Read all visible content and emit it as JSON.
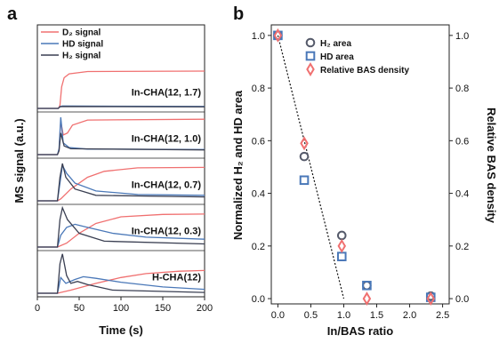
{
  "panels": {
    "a": "a",
    "b": "b"
  },
  "chart_data": [
    {
      "type": "line",
      "panel": "a",
      "xlabel": "Time (s)",
      "ylabel": "MS signal (a.u.)",
      "xlim": [
        0,
        200
      ],
      "x_ticks": [
        0,
        50,
        100,
        150,
        200
      ],
      "legend": [
        {
          "name": "D₂ signal",
          "color": "#f07070"
        },
        {
          "name": "HD signal",
          "color": "#4a78b8"
        },
        {
          "name": "H₂ signal",
          "color": "#3a3f52"
        }
      ],
      "colors": {
        "D2": "#f07070",
        "HD": "#4a78b8",
        "H2": "#3a3f52"
      },
      "traces": [
        {
          "label": "In-CHA(12, 1.7)",
          "D2": [
            [
              0,
              0
            ],
            [
              25,
              0
            ],
            [
              27,
              0.08
            ],
            [
              29,
              0.55
            ],
            [
              32,
              0.78
            ],
            [
              38,
              0.88
            ],
            [
              60,
              0.94
            ],
            [
              200,
              0.95
            ]
          ],
          "HD": [
            [
              0,
              0
            ],
            [
              25,
              0
            ],
            [
              27,
              0.05
            ],
            [
              30,
              0.06
            ],
            [
              200,
              0.05
            ]
          ],
          "H2": [
            [
              0,
              0
            ],
            [
              25,
              0
            ],
            [
              27,
              0.04
            ],
            [
              30,
              0.05
            ],
            [
              200,
              0.04
            ]
          ]
        },
        {
          "label": "In-CHA(12, 1.0)",
          "D2": [
            [
              0,
              0
            ],
            [
              24,
              0
            ],
            [
              26,
              0.1
            ],
            [
              28,
              0.85
            ],
            [
              31,
              0.5
            ],
            [
              36,
              0.55
            ],
            [
              42,
              0.75
            ],
            [
              60,
              0.88
            ],
            [
              200,
              0.9
            ]
          ],
          "HD": [
            [
              0,
              0
            ],
            [
              24,
              0
            ],
            [
              26,
              0.15
            ],
            [
              28,
              0.95
            ],
            [
              31,
              0.3
            ],
            [
              38,
              0.18
            ],
            [
              60,
              0.14
            ],
            [
              200,
              0.13
            ]
          ],
          "H2": [
            [
              0,
              0
            ],
            [
              24,
              0
            ],
            [
              26,
              0.1
            ],
            [
              28,
              0.55
            ],
            [
              32,
              0.22
            ],
            [
              40,
              0.15
            ],
            [
              200,
              0.12
            ]
          ]
        },
        {
          "label": "In-CHA(12, 0.7)",
          "D2": [
            [
              0,
              0
            ],
            [
              24,
              0
            ],
            [
              28,
              0.05
            ],
            [
              40,
              0.3
            ],
            [
              60,
              0.6
            ],
            [
              80,
              0.75
            ],
            [
              120,
              0.84
            ],
            [
              200,
              0.85
            ]
          ],
          "HD": [
            [
              0,
              0
            ],
            [
              24,
              0
            ],
            [
              27,
              0.45
            ],
            [
              30,
              0.9
            ],
            [
              35,
              0.7
            ],
            [
              45,
              0.45
            ],
            [
              70,
              0.25
            ],
            [
              120,
              0.16
            ],
            [
              200,
              0.14
            ]
          ],
          "H2": [
            [
              0,
              0
            ],
            [
              24,
              0
            ],
            [
              27,
              0.6
            ],
            [
              30,
              0.95
            ],
            [
              34,
              0.6
            ],
            [
              45,
              0.3
            ],
            [
              70,
              0.14
            ],
            [
              200,
              0.1
            ]
          ]
        },
        {
          "label": "In-CHA(12, 0.3)",
          "D2": [
            [
              0,
              0
            ],
            [
              24,
              0
            ],
            [
              35,
              0.1
            ],
            [
              50,
              0.35
            ],
            [
              70,
              0.6
            ],
            [
              100,
              0.77
            ],
            [
              150,
              0.83
            ],
            [
              200,
              0.84
            ]
          ],
          "HD": [
            [
              0,
              0
            ],
            [
              24,
              0
            ],
            [
              28,
              0.3
            ],
            [
              35,
              0.5
            ],
            [
              45,
              0.58
            ],
            [
              60,
              0.5
            ],
            [
              90,
              0.35
            ],
            [
              130,
              0.25
            ],
            [
              200,
              0.2
            ]
          ],
          "H2": [
            [
              0,
              0
            ],
            [
              24,
              0
            ],
            [
              27,
              0.7
            ],
            [
              30,
              1.0
            ],
            [
              36,
              0.7
            ],
            [
              50,
              0.35
            ],
            [
              80,
              0.15
            ],
            [
              200,
              0.08
            ]
          ]
        },
        {
          "label": "H-CHA(12)",
          "D2": [
            [
              0,
              0
            ],
            [
              24,
              0
            ],
            [
              40,
              0.08
            ],
            [
              70,
              0.25
            ],
            [
              100,
              0.4
            ],
            [
              130,
              0.5
            ],
            [
              170,
              0.56
            ],
            [
              200,
              0.58
            ]
          ],
          "HD": [
            [
              0,
              0
            ],
            [
              24,
              0
            ],
            [
              28,
              0.4
            ],
            [
              34,
              0.25
            ],
            [
              45,
              0.35
            ],
            [
              55,
              0.42
            ],
            [
              70,
              0.38
            ],
            [
              100,
              0.28
            ],
            [
              150,
              0.16
            ],
            [
              200,
              0.1
            ]
          ],
          "H2": [
            [
              0,
              0
            ],
            [
              24,
              0
            ],
            [
              27,
              0.75
            ],
            [
              30,
              1.0
            ],
            [
              35,
              0.45
            ],
            [
              40,
              0.25
            ],
            [
              48,
              0.3
            ],
            [
              60,
              0.22
            ],
            [
              90,
              0.08
            ],
            [
              200,
              0.02
            ]
          ]
        }
      ]
    },
    {
      "type": "scatter",
      "panel": "b",
      "xlabel": "In/BAS ratio",
      "ylabel": "Normalized H₂ and HD area",
      "y2label": "Relative BAS density",
      "xlim": [
        -0.1,
        2.6
      ],
      "ylim": [
        -0.02,
        1.04
      ],
      "x_ticks": [
        0.0,
        0.5,
        1.0,
        1.5,
        2.0,
        2.5
      ],
      "y_ticks": [
        0.0,
        0.2,
        0.4,
        0.6,
        0.8,
        1.0
      ],
      "legend_position": "top-right",
      "series": [
        {
          "name": "H₂ area",
          "marker": "circle",
          "color": "#555a6a",
          "points": [
            [
              0.0,
              1.0
            ],
            [
              0.4,
              0.54
            ],
            [
              0.97,
              0.24
            ],
            [
              1.35,
              0.05
            ],
            [
              2.32,
              0.01
            ]
          ]
        },
        {
          "name": "HD area",
          "marker": "square",
          "color": "#4a78b8",
          "points": [
            [
              0.0,
              1.0
            ],
            [
              0.4,
              0.45
            ],
            [
              0.97,
              0.16
            ],
            [
              1.35,
              0.05
            ],
            [
              2.32,
              0.005
            ]
          ]
        },
        {
          "name": "Relative BAS density",
          "marker": "diamond",
          "color": "#f07070",
          "points": [
            [
              0.0,
              1.0
            ],
            [
              0.4,
              0.59
            ],
            [
              0.97,
              0.2
            ],
            [
              1.35,
              0.0
            ],
            [
              2.32,
              0.0
            ]
          ]
        }
      ],
      "fit_line": {
        "points": [
          [
            0.0,
            1.0
          ],
          [
            1.0,
            0.0
          ]
        ],
        "style": "dotted"
      }
    }
  ]
}
